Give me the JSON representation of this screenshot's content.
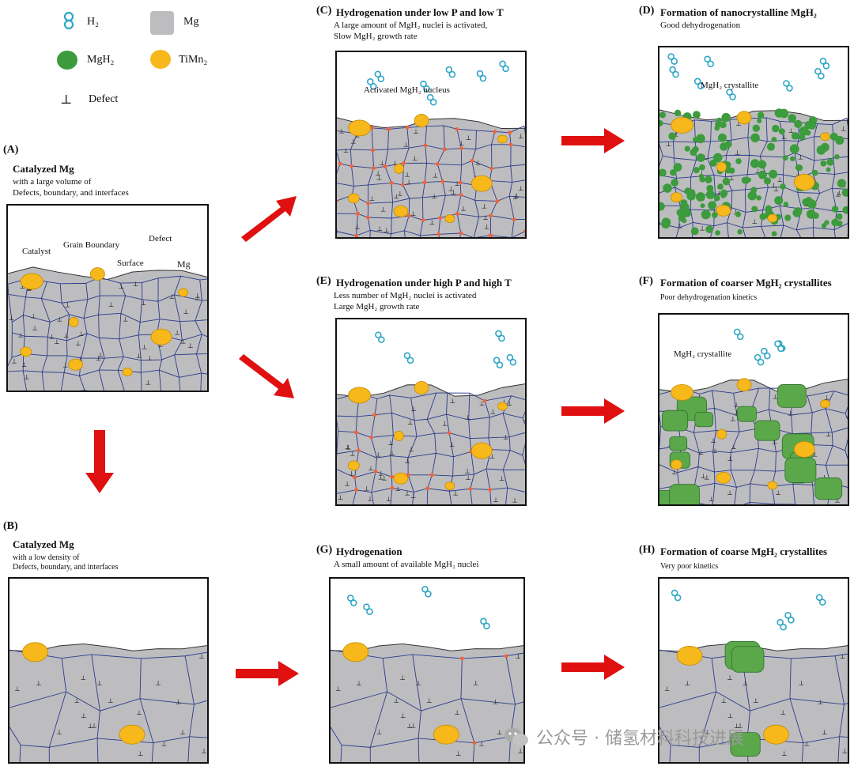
{
  "legend": {
    "h2": "H₂",
    "mg": "Mg",
    "mgh2": "MgH₂",
    "timn2": "TiMn₂",
    "defect_symbol": "⊥",
    "defect": "Defect"
  },
  "colors": {
    "mg": "#bdbdbf",
    "catalyst": "#f6b81b",
    "mgh2": "#3c9b3c",
    "mgh2_coarse": "#5ba84a",
    "boundary": "#2b3a8c",
    "nucleus": "#f0643c",
    "arrow": "#e01010",
    "h2": "#2fa6c7"
  },
  "panels": {
    "A": {
      "id": "(A)",
      "title": "Catalyzed Mg",
      "sub1": "with a large volume of",
      "sub2": "Defects, boundary, and interfaces",
      "labels": {
        "catalyst": "Catalyst",
        "grain": "Grain Boundary",
        "surface": "Surface",
        "defect": "Defect",
        "mg": "Mg"
      }
    },
    "B": {
      "id": "(B)",
      "title": "Catalyzed Mg",
      "sub1": "with a low density of",
      "sub2": "Defects, boundary, and interfaces"
    },
    "C": {
      "id": "(C)",
      "title": "Hydrogenation under low P and low T",
      "sub1": "A large amount of MgH₂ nuclei is activated,",
      "sub2": "Slow MgH₂ growth rate",
      "label": "Activated MgH₂ nucleus"
    },
    "D": {
      "id": "(D)",
      "title": "Formation of nanocrystalline MgH₂",
      "sub1": "Good dehydrogenation",
      "label": "MgH₂ crystallite"
    },
    "E": {
      "id": "(E)",
      "title": "Hydrogenation under high P and high T",
      "sub1": "Less number of MgH₂ nuclei is activated",
      "sub2": "Large MgH₂ growth rate"
    },
    "F": {
      "id": "(F)",
      "title": "Formation of coarser MgH₂ crystallites",
      "sub1": "Poor dehydrogenation kinetics",
      "label": "MgH₂ crystallite"
    },
    "G": {
      "id": "(G)",
      "title": "Hydrogenation",
      "sub1": "A small amount of available MgH₂ nuclei"
    },
    "H": {
      "id": "(H)",
      "title": "Formation of coarse MgH₂ crystallites",
      "sub1": "Very poor kinetics"
    }
  },
  "watermark": "公众号 · 储氢材料科技进展"
}
